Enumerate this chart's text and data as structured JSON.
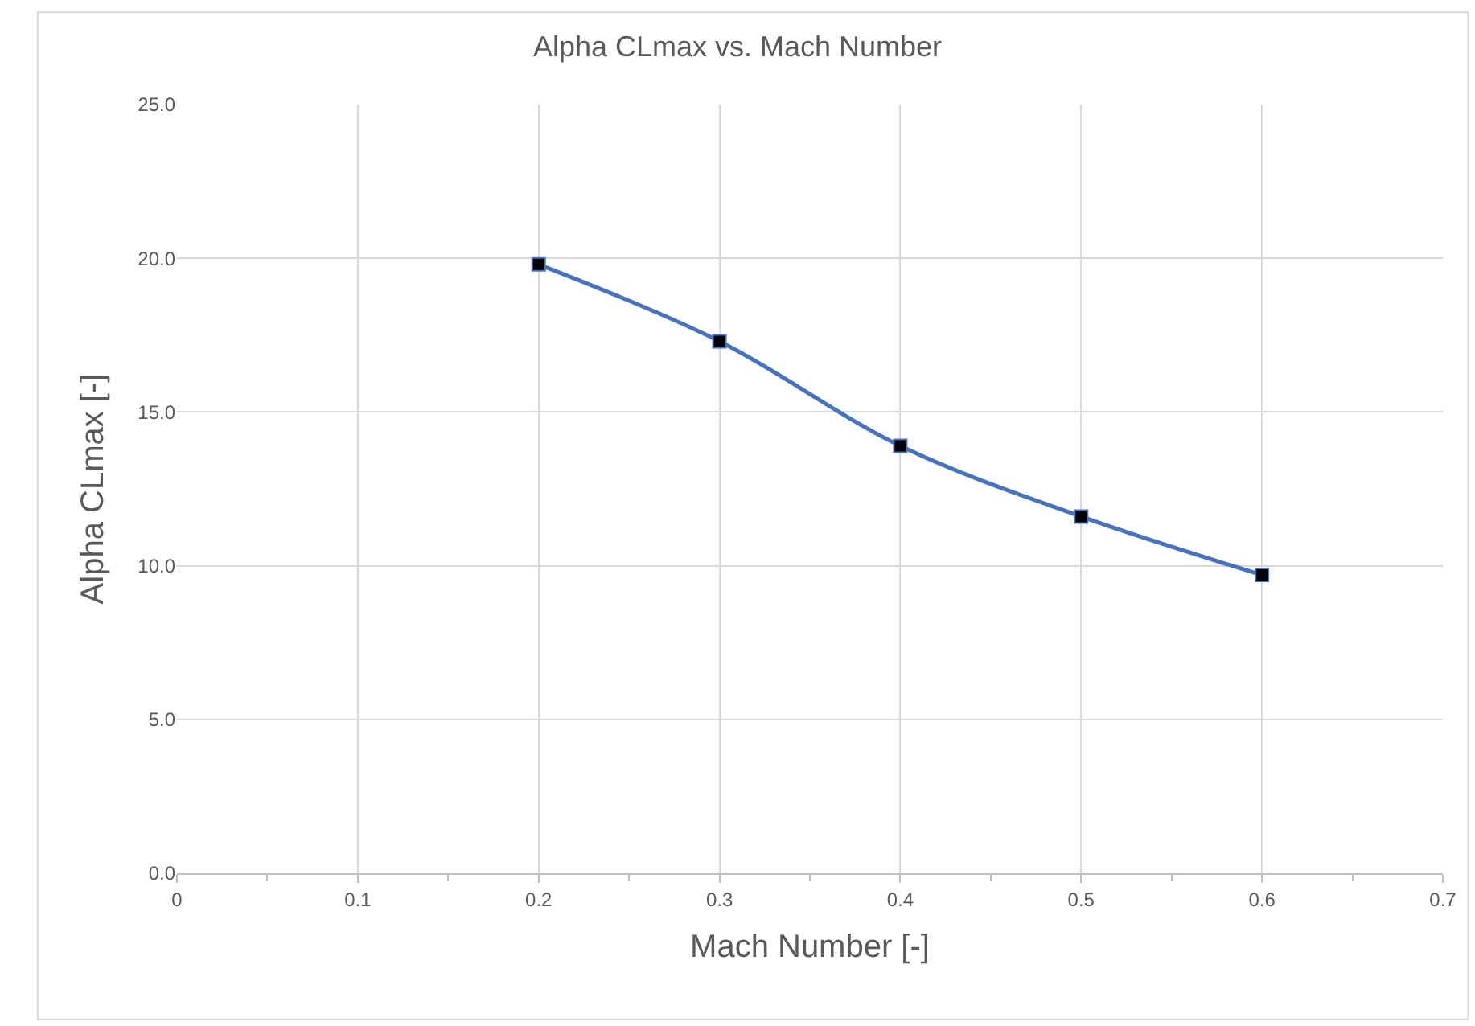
{
  "chart_data": {
    "type": "line",
    "title": "Alpha CLmax vs. Mach Number",
    "xlabel": "Mach Number [-]",
    "ylabel": "Alpha CLmax [-]",
    "x": [
      0.2,
      0.3,
      0.4,
      0.5,
      0.6
    ],
    "series": [
      {
        "color": "#4472c4",
        "values": [
          19.8,
          17.3,
          13.9,
          11.6,
          9.7
        ]
      }
    ],
    "xlim": [
      0,
      0.7
    ],
    "xticks": [
      {
        "value": 0,
        "label": "0"
      },
      0.1,
      0.2,
      0.3,
      0.4,
      0.5,
      0.6,
      0.7
    ],
    "ylim": [
      0,
      25
    ],
    "yticks": [
      {
        "value": 0,
        "label": "0.0"
      },
      {
        "value": 5,
        "label": "5.0"
      },
      {
        "value": 10,
        "label": "10.0"
      },
      {
        "value": 15,
        "label": "15.0"
      },
      {
        "value": 20,
        "label": "20.0"
      },
      {
        "value": 25,
        "label": "25.0"
      }
    ],
    "grid": true,
    "marker": "square",
    "line_style": "solid"
  }
}
